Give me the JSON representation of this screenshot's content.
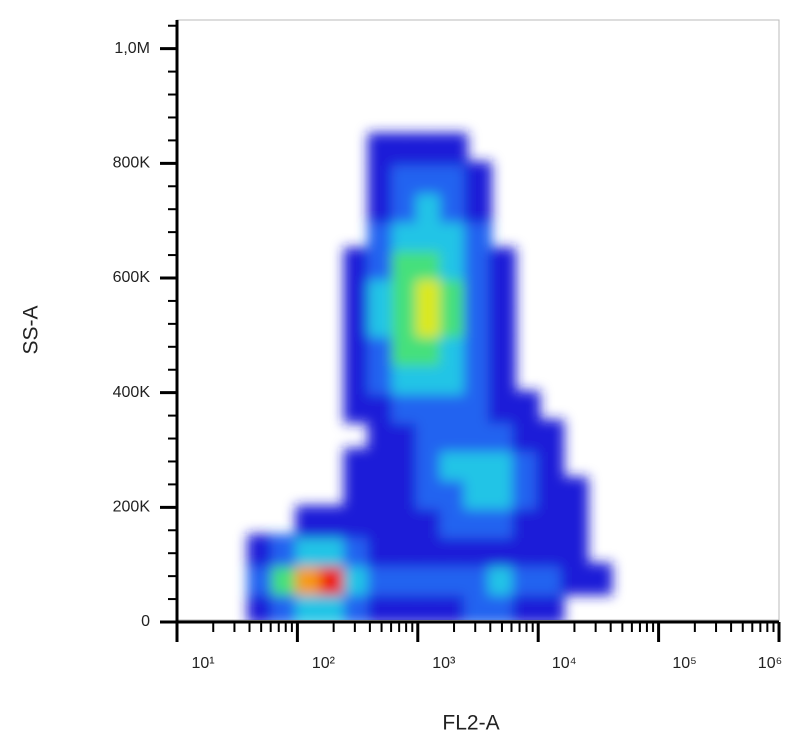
{
  "chart_data": {
    "type": "density",
    "x_label": "FL2-A",
    "y_label": "SS-A",
    "xscale": "log",
    "xlim": [
      10,
      1000000
    ],
    "ylim": [
      0,
      1050000
    ],
    "xticks": [
      {
        "value": 10,
        "label": "10¹"
      },
      {
        "value": 100,
        "label": "10²"
      },
      {
        "value": 1000,
        "label": "10³"
      },
      {
        "value": 10000,
        "label": "10⁴"
      },
      {
        "value": 100000,
        "label": "10⁵"
      },
      {
        "value": 1000000,
        "label": "10⁶"
      }
    ],
    "xminorticks": [
      20,
      30,
      40,
      50,
      60,
      70,
      80,
      90,
      200,
      300,
      400,
      500,
      600,
      700,
      800,
      900,
      2000,
      3000,
      4000,
      5000,
      6000,
      7000,
      8000,
      9000,
      20000,
      30000,
      40000,
      50000,
      60000,
      70000,
      80000,
      90000,
      200000,
      300000,
      400000,
      500000,
      600000,
      700000,
      800000,
      900000
    ],
    "yticks": [
      0,
      {
        "value": 200000,
        "label": "200K"
      },
      {
        "value": 400000,
        "label": "400K"
      },
      {
        "value": 600000,
        "label": "600K"
      },
      {
        "value": 800000,
        "label": "800K"
      },
      {
        "value": 1000000,
        "label": "1,0M"
      }
    ],
    "yminorticks": [
      40000,
      80000,
      120000,
      160000,
      240000,
      280000,
      320000,
      360000,
      440000,
      480000,
      520000,
      560000,
      640000,
      680000,
      720000,
      760000,
      840000,
      880000,
      920000,
      960000,
      1040000
    ],
    "xbins": [
      39.8,
      63.1,
      100,
      158.5,
      251.2,
      398.1,
      631,
      1000,
      1585,
      2512,
      3981,
      6310,
      10000,
      15849,
      25119,
      39811
    ],
    "ybins": [
      0,
      50000,
      100000,
      150000,
      200000,
      250000,
      300000,
      350000,
      400000,
      450000,
      500000,
      550000,
      600000,
      650000,
      700000,
      750000,
      800000,
      850000
    ],
    "density": [
      [
        1,
        2,
        3,
        3,
        2,
        1,
        1,
        1,
        1,
        2,
        2,
        1,
        1,
        0,
        0
      ],
      [
        2,
        4,
        6,
        7,
        3,
        2,
        2,
        2,
        2,
        2,
        3,
        2,
        2,
        1,
        1
      ],
      [
        1,
        2,
        3,
        3,
        2,
        1,
        1,
        1,
        1,
        1,
        1,
        1,
        1,
        1,
        0
      ],
      [
        0,
        0,
        1,
        1,
        1,
        1,
        1,
        1,
        2,
        2,
        2,
        1,
        1,
        1,
        0
      ],
      [
        0,
        0,
        0,
        0,
        1,
        1,
        1,
        2,
        2,
        3,
        3,
        2,
        1,
        1,
        0
      ],
      [
        0,
        0,
        0,
        0,
        1,
        1,
        1,
        2,
        3,
        3,
        3,
        2,
        1,
        0,
        0
      ],
      [
        0,
        0,
        0,
        0,
        0,
        1,
        1,
        2,
        2,
        2,
        2,
        1,
        1,
        0,
        0
      ],
      [
        0,
        0,
        0,
        0,
        1,
        1,
        2,
        2,
        2,
        2,
        1,
        1,
        0,
        0,
        0
      ],
      [
        0,
        0,
        0,
        0,
        1,
        2,
        3,
        3,
        3,
        2,
        1,
        0,
        0,
        0,
        0
      ],
      [
        0,
        0,
        0,
        0,
        1,
        2,
        4,
        4,
        3,
        2,
        1,
        0,
        0,
        0,
        0
      ],
      [
        0,
        0,
        0,
        0,
        1,
        3,
        4,
        5,
        4,
        2,
        1,
        0,
        0,
        0,
        0
      ],
      [
        0,
        0,
        0,
        0,
        1,
        3,
        4,
        5,
        4,
        2,
        1,
        0,
        0,
        0,
        0
      ],
      [
        0,
        0,
        0,
        0,
        1,
        2,
        4,
        4,
        3,
        2,
        1,
        0,
        0,
        0,
        0
      ],
      [
        0,
        0,
        0,
        0,
        0,
        2,
        3,
        3,
        3,
        2,
        0,
        0,
        0,
        0,
        0
      ],
      [
        0,
        0,
        0,
        0,
        0,
        1,
        2,
        3,
        2,
        1,
        0,
        0,
        0,
        0,
        0
      ],
      [
        0,
        0,
        0,
        0,
        0,
        1,
        2,
        2,
        2,
        1,
        0,
        0,
        0,
        0,
        0
      ],
      [
        0,
        0,
        0,
        0,
        0,
        1,
        1,
        1,
        1,
        0,
        0,
        0,
        0,
        0,
        0
      ]
    ],
    "colors": [
      "#1c1cd8",
      "#2464f0",
      "#20c4e6",
      "#44e07c",
      "#dce81e",
      "#f79a12",
      "#ee1c10"
    ]
  }
}
